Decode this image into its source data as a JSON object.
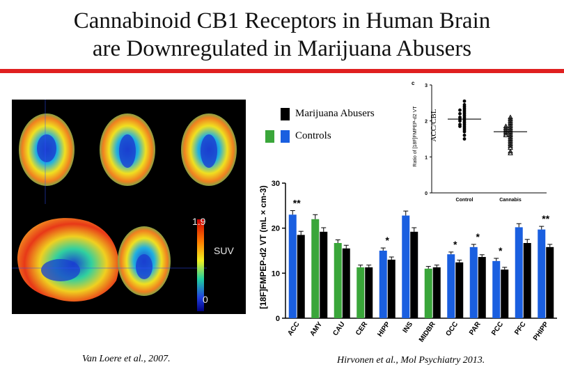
{
  "title_line1": "Cannabinoid CB1 Receptors in Human Brain",
  "title_line2": "are Downregulated in Marijuana Abusers",
  "legend": {
    "marijuana": "Marijuana Abusers",
    "controls": "Controls"
  },
  "colors": {
    "accent_red": "#e02020",
    "blue": "#1a5fe0",
    "green": "#3aa63a",
    "black": "#000000"
  },
  "brain_scale": {
    "max_label": "1.9",
    "unit_label": "SUV",
    "min_label": "0"
  },
  "cite_left": "Van Loere et al., 2007.",
  "cite_right": "Hirvonen et al., Mol Psychiatry 2013.",
  "chart_data": [
    {
      "type": "bar",
      "ylabel": "[18F]FMPEP-d2 VT (mL × cm-3)",
      "ylim": [
        0,
        30
      ],
      "yticks": [
        "0",
        "10",
        "20",
        "30"
      ],
      "categories": [
        "ACC",
        "AMY",
        "CAU",
        "CER",
        "HIPP",
        "INS",
        "MIDBR",
        "OCC",
        "PAR",
        "PCC",
        "PFC",
        "PHIPP"
      ],
      "group_color": [
        "blue",
        "green",
        "green",
        "green",
        "blue",
        "blue",
        "green",
        "blue",
        "blue",
        "blue",
        "blue",
        "blue"
      ],
      "series": [
        {
          "name": "Controls",
          "values": [
            23.0,
            22.0,
            16.7,
            11.3,
            15.0,
            22.8,
            11.0,
            14.2,
            15.8,
            12.7,
            20.2,
            19.7
          ]
        },
        {
          "name": "Marijuana Abusers",
          "values": [
            18.5,
            19.2,
            15.5,
            11.3,
            13.0,
            19.2,
            11.3,
            12.4,
            13.6,
            10.8,
            16.7,
            15.8
          ]
        }
      ],
      "errors": [
        [
          0.9,
          1.0,
          0.7,
          0.5,
          0.6,
          1.0,
          0.5,
          0.5,
          0.6,
          0.6,
          0.8,
          0.7
        ],
        [
          0.8,
          0.9,
          0.7,
          0.5,
          0.6,
          0.9,
          0.5,
          0.5,
          0.5,
          0.5,
          0.8,
          0.6
        ]
      ],
      "significance": [
        "**",
        "",
        "",
        "",
        "*",
        "",
        "",
        "*",
        "*",
        "*",
        "",
        "**"
      ]
    },
    {
      "type": "scatter",
      "panel_label": "c",
      "ylabel": "Ratio of [18F]FMPEP-d2 VT",
      "ylabel_overlay": "ACC/CBL",
      "ylim": [
        0,
        3
      ],
      "yticks": [
        "0",
        "1",
        "2",
        "3"
      ],
      "categories": [
        "Control",
        "Cannabis"
      ],
      "means": [
        2.05,
        1.7
      ],
      "groups": [
        {
          "name": "Control",
          "values": [
            2.55,
            2.45,
            2.4,
            2.35,
            2.3,
            2.3,
            2.25,
            2.2,
            2.2,
            2.15,
            2.1,
            2.1,
            2.05,
            2.05,
            2.0,
            2.0,
            1.95,
            1.9,
            1.9,
            1.85,
            1.85,
            1.8,
            1.75,
            1.7,
            1.6,
            1.5
          ]
        },
        {
          "name": "Cannabis",
          "values": [
            2.1,
            2.05,
            2.0,
            1.95,
            1.9,
            1.85,
            1.85,
            1.8,
            1.8,
            1.75,
            1.75,
            1.7,
            1.7,
            1.65,
            1.65,
            1.6,
            1.6,
            1.55,
            1.5,
            1.45,
            1.4,
            1.35,
            1.3,
            1.25,
            1.15,
            1.1
          ]
        }
      ]
    }
  ]
}
